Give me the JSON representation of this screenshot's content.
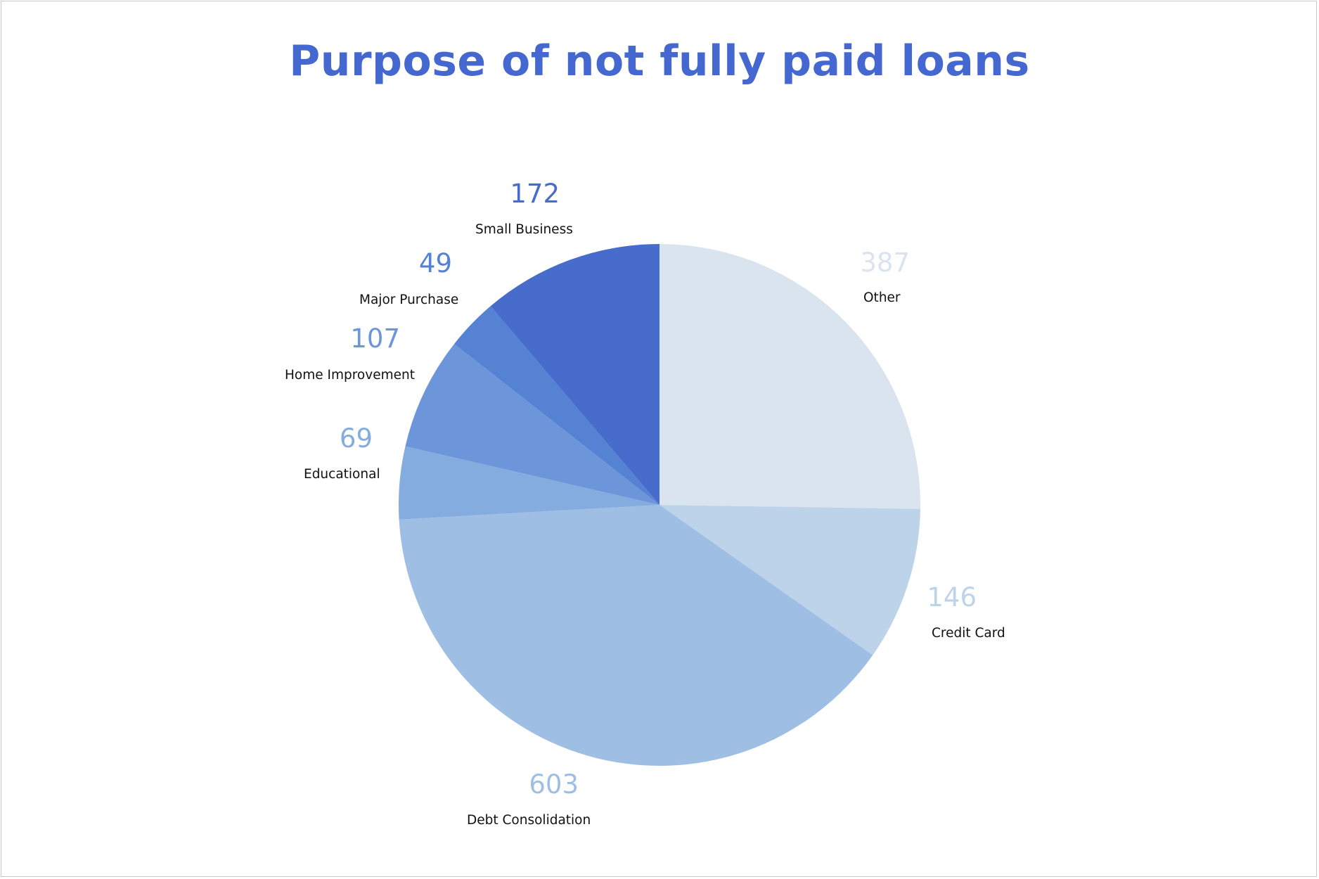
{
  "chart_data": {
    "type": "pie",
    "title": "Purpose of not fully paid loans",
    "categories": [
      "Other",
      "Credit Card",
      "Debt Consolidation",
      "Educational",
      "Home Improvement",
      "Major Purchase",
      "Small Business"
    ],
    "values": [
      387,
      146,
      603,
      69,
      107,
      49,
      172
    ],
    "colors": [
      "#d9e4ee",
      "#bcd3e9",
      "#9ebee3",
      "#85acdf",
      "#6d95d9",
      "#5682d3",
      "#486ccb"
    ],
    "title_color": "#4468cf",
    "label_text_color": "#111111",
    "start_angle_deg": 0,
    "direction": "clockwise"
  }
}
